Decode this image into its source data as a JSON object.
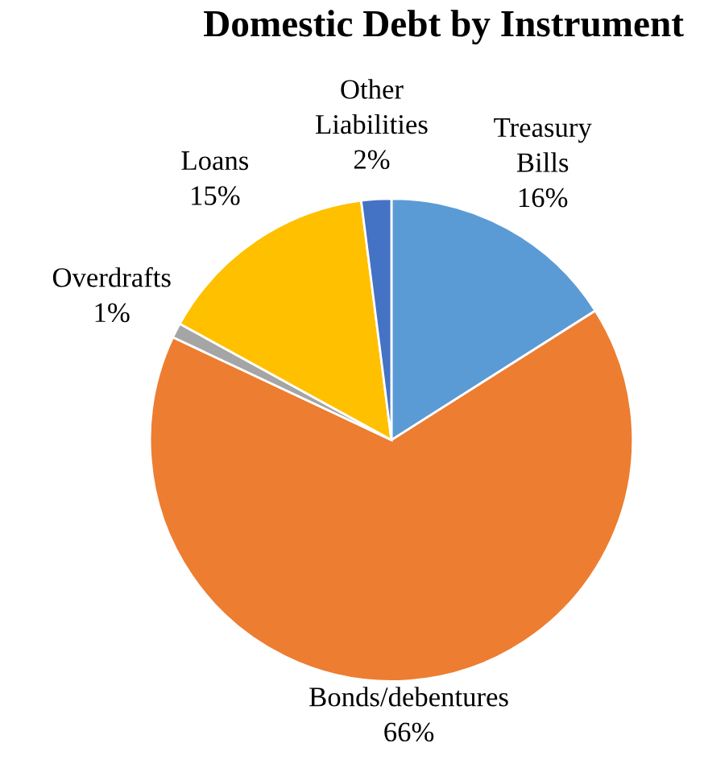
{
  "chart_data": {
    "type": "pie",
    "title": "Domestic Debt by Instrument",
    "categories": [
      "Treasury Bills",
      "Bonds/debentures",
      "Overdrafts",
      "Loans",
      "Other Liabilities"
    ],
    "values": [
      16,
      66,
      1,
      15,
      2
    ],
    "value_labels": [
      "16%",
      "66%",
      "1%",
      "15%",
      "2%"
    ],
    "colors": [
      "#5b9bd5",
      "#ed7d31",
      "#a5a5a5",
      "#ffc000",
      "#4472c4"
    ],
    "legend": false
  }
}
